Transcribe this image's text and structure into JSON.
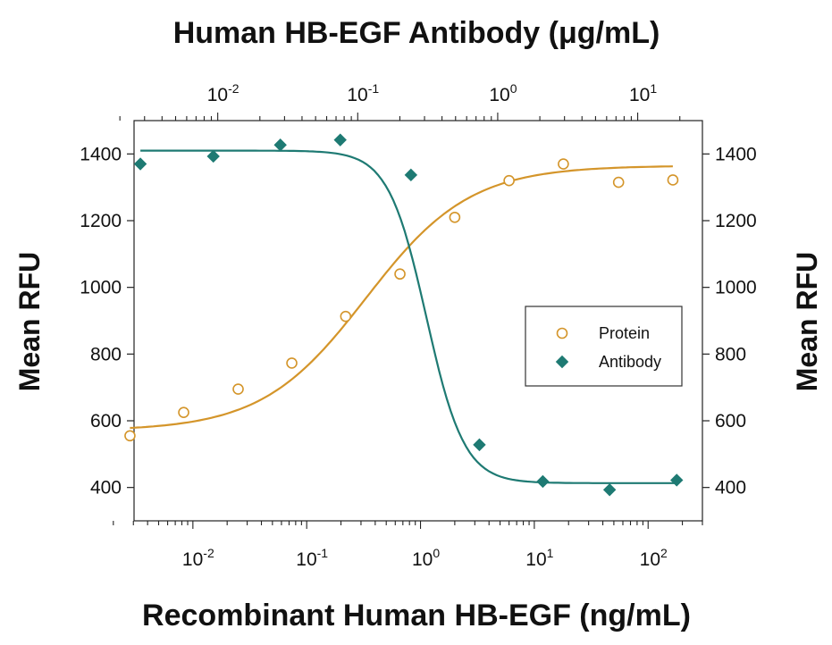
{
  "chart_data": {
    "type": "scatter",
    "top_xlabel": "Human HB-EGF Antibody (μg/mL)",
    "bottom_xlabel": "Recombinant Human HB-EGF (ng/mL)",
    "ylabel_left": "Mean RFU",
    "ylabel_right": "Mean RFU",
    "x_scale": "log",
    "bottom_x_range": [
      0.0018,
      300
    ],
    "top_x_range": [
      0.0018,
      29
    ],
    "bottom_x_ticks": [
      {
        "value": 0.01,
        "base": "10",
        "exp": "-2"
      },
      {
        "value": 0.1,
        "base": "10",
        "exp": "-1"
      },
      {
        "value": 1,
        "base": "10",
        "exp": "0"
      },
      {
        "value": 10,
        "base": "10",
        "exp": "1"
      },
      {
        "value": 100,
        "base": "10",
        "exp": "2"
      }
    ],
    "top_x_ticks": [
      {
        "value": 0.01,
        "base": "10",
        "exp": "-2"
      },
      {
        "value": 0.1,
        "base": "10",
        "exp": "-1"
      },
      {
        "value": 1,
        "base": "10",
        "exp": "0"
      },
      {
        "value": 10,
        "base": "10",
        "exp": "1"
      }
    ],
    "ylim": [
      300,
      1500
    ],
    "y_ticks": [
      400,
      600,
      800,
      1000,
      1200,
      1400
    ],
    "grid": false,
    "legend_position": "right",
    "series": [
      {
        "name": "Protein",
        "axis": "bottom",
        "marker": "open-circle",
        "color": "#d4952a",
        "points": [
          {
            "x": 0.0028,
            "y": 555
          },
          {
            "x": 0.0083,
            "y": 625
          },
          {
            "x": 0.025,
            "y": 695
          },
          {
            "x": 0.074,
            "y": 773
          },
          {
            "x": 0.22,
            "y": 913
          },
          {
            "x": 0.66,
            "y": 1040
          },
          {
            "x": 2.0,
            "y": 1210
          },
          {
            "x": 6.0,
            "y": 1320
          },
          {
            "x": 18,
            "y": 1370
          },
          {
            "x": 55,
            "y": 1315
          },
          {
            "x": 165,
            "y": 1322
          }
        ]
      },
      {
        "name": "Antibody",
        "axis": "top",
        "marker": "filled-diamond",
        "color": "#1e7a73",
        "points": [
          {
            "x": 0.0028,
            "y": 1370
          },
          {
            "x": 0.0093,
            "y": 1393
          },
          {
            "x": 0.028,
            "y": 1427
          },
          {
            "x": 0.075,
            "y": 1442
          },
          {
            "x": 0.24,
            "y": 1337
          },
          {
            "x": 0.74,
            "y": 528
          },
          {
            "x": 2.1,
            "y": 418
          },
          {
            "x": 6.3,
            "y": 393
          },
          {
            "x": 19,
            "y": 422
          }
        ]
      }
    ]
  }
}
